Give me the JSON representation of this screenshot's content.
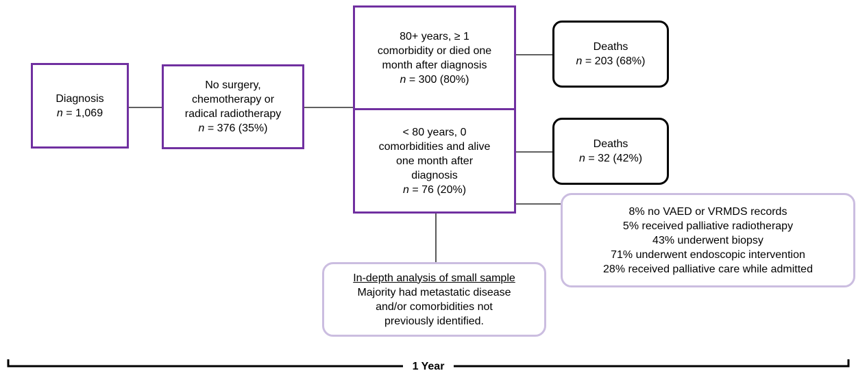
{
  "nodes": [
    {
      "lines": [
        "Diagnosis"
      ],
      "count_symbol": "n",
      "count": "= 1,069"
    },
    {
      "lines": [
        "No surgery,",
        "chemotherapy or",
        "radical radiotherapy"
      ],
      "count_symbol": "n",
      "count": "= 376 (35%)"
    },
    {
      "lines": [
        "80+ years, ≥ 1",
        "comorbidity or died one",
        "month after diagnosis"
      ],
      "count_symbol": "n",
      "count": "= 300 (80%)"
    },
    {
      "lines": [
        "< 80 years, 0",
        "comorbidities and alive",
        "one month after",
        "diagnosis"
      ],
      "count_symbol": "n",
      "count": "= 76 (20%)"
    },
    {
      "lines": [
        "Deaths"
      ],
      "count_symbol": "n",
      "count": "= 203 (68%)"
    },
    {
      "lines": [
        "Deaths"
      ],
      "count_symbol": "n",
      "count": "= 32 (42%)"
    }
  ],
  "notes": [
    {
      "lines": [
        "8% no VAED or VRMDS records",
        "5% received palliative radiotherapy",
        "43% underwent biopsy",
        "71% underwent endoscopic intervention",
        "28% received palliative care while admitted"
      ]
    },
    {
      "heading": "In-depth analysis of small sample",
      "lines": [
        "Majority had metastatic disease",
        "and/or comorbidities not",
        "previously identified."
      ]
    }
  ],
  "timeline": {
    "label": "1 Year"
  }
}
